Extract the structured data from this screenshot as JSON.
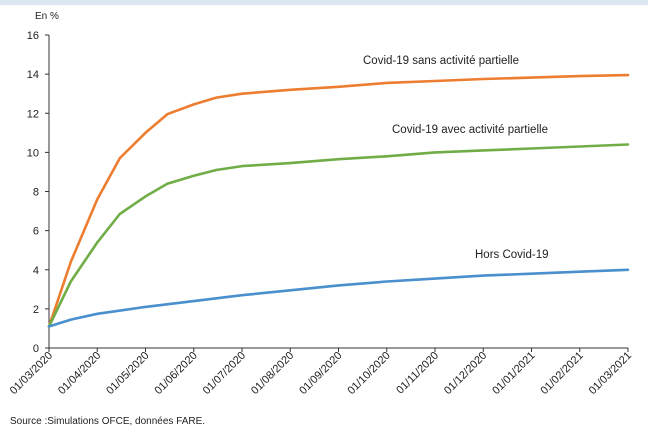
{
  "chart_data": {
    "type": "line",
    "unit_label": "En %",
    "x": [
      "01/03/2020",
      "01/04/2020",
      "01/05/2020",
      "01/06/2020",
      "01/07/2020",
      "01/08/2020",
      "01/09/2020",
      "01/10/2020",
      "01/11/2020",
      "01/12/2020",
      "01/01/2021",
      "01/02/2021",
      "01/03/2021"
    ],
    "ylim": [
      0,
      16
    ],
    "yticks": [
      0,
      2,
      4,
      6,
      8,
      10,
      12,
      14,
      16
    ],
    "grid": false,
    "series": [
      {
        "name": "Covid-19 sans activité partielle",
        "color": "#ed7d31",
        "points": [
          [
            "01/03/2020",
            1.1
          ],
          [
            "15/03/2020",
            4.4
          ],
          [
            "01/04/2020",
            7.6
          ],
          [
            "15/04/2020",
            9.7
          ],
          [
            "01/05/2020",
            11.0
          ],
          [
            "15/05/2020",
            11.95
          ],
          [
            "01/06/2020",
            12.45
          ],
          [
            "15/06/2020",
            12.8
          ],
          [
            "01/07/2020",
            13.0
          ],
          [
            "01/08/2020",
            13.2
          ],
          [
            "01/09/2020",
            13.35
          ],
          [
            "01/10/2020",
            13.55
          ],
          [
            "01/11/2020",
            13.65
          ],
          [
            "01/12/2020",
            13.75
          ],
          [
            "01/01/2021",
            13.82
          ],
          [
            "01/02/2021",
            13.9
          ],
          [
            "01/03/2021",
            13.95
          ]
        ]
      },
      {
        "name": "Covid-19 avec activité partielle",
        "color": "#70ad47",
        "points": [
          [
            "01/03/2020",
            1.1
          ],
          [
            "15/03/2020",
            3.4
          ],
          [
            "01/04/2020",
            5.4
          ],
          [
            "15/04/2020",
            6.85
          ],
          [
            "01/05/2020",
            7.75
          ],
          [
            "15/05/2020",
            8.4
          ],
          [
            "01/06/2020",
            8.8
          ],
          [
            "15/06/2020",
            9.1
          ],
          [
            "01/07/2020",
            9.3
          ],
          [
            "01/08/2020",
            9.45
          ],
          [
            "01/09/2020",
            9.65
          ],
          [
            "01/10/2020",
            9.8
          ],
          [
            "01/11/2020",
            10.0
          ],
          [
            "01/12/2020",
            10.1
          ],
          [
            "01/01/2021",
            10.2
          ],
          [
            "01/02/2021",
            10.3
          ],
          [
            "01/03/2021",
            10.4
          ]
        ]
      },
      {
        "name": "Hors Covid-19",
        "color": "#4a8fce",
        "points": [
          [
            "01/03/2020",
            1.1
          ],
          [
            "15/03/2020",
            1.45
          ],
          [
            "01/04/2020",
            1.75
          ],
          [
            "01/05/2020",
            2.1
          ],
          [
            "01/06/2020",
            2.4
          ],
          [
            "01/07/2020",
            2.7
          ],
          [
            "01/08/2020",
            2.95
          ],
          [
            "01/09/2020",
            3.2
          ],
          [
            "01/10/2020",
            3.4
          ],
          [
            "01/11/2020",
            3.55
          ],
          [
            "01/12/2020",
            3.7
          ],
          [
            "01/01/2021",
            3.8
          ],
          [
            "01/02/2021",
            3.9
          ],
          [
            "01/03/2021",
            4.0
          ]
        ]
      }
    ]
  },
  "source": "Source :Simulations OFCE, données FARE."
}
